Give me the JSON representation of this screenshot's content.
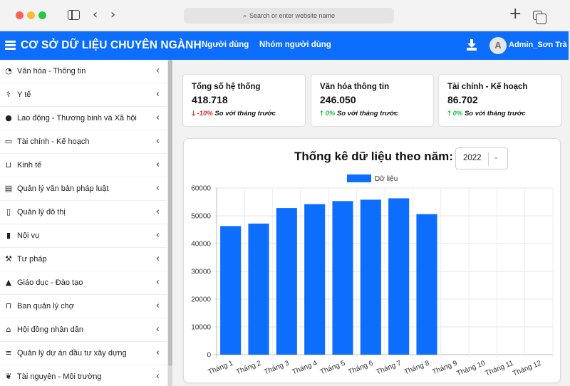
{
  "browser": {
    "url_placeholder": "Search or enter website name"
  },
  "header": {
    "title": "CƠ SỞ DỮ LIỆU CHUYÊN NGÀNH",
    "nav": [
      "Người dùng",
      "Nhóm người dùng"
    ],
    "avatar_letter": "A",
    "username": "Admin_Sơn Trà",
    "brand_color": "#0d6efd"
  },
  "sidebar": {
    "items": [
      {
        "label": "Văn hóa - Thông tin",
        "icon": "clock-icon"
      },
      {
        "label": "Y tế",
        "icon": "stethoscope-icon"
      },
      {
        "label": "Lao động - Thương binh và Xã hội",
        "icon": "globe-icon"
      },
      {
        "label": "Tài chính - Kế hoạch",
        "icon": "money-icon"
      },
      {
        "label": "Kinh tế",
        "icon": "basket-icon"
      },
      {
        "label": "Quản lý văn bản pháp luật",
        "icon": "document-icon"
      },
      {
        "label": "Quản lý đô thị",
        "icon": "building-icon"
      },
      {
        "label": "Nội vụ",
        "icon": "book-icon"
      },
      {
        "label": "Tư pháp",
        "icon": "gavel-icon"
      },
      {
        "label": "Giáo dục - Đào tạo",
        "icon": "graduation-cap-icon"
      },
      {
        "label": "Ban quản lý chợ",
        "icon": "cart-icon"
      },
      {
        "label": "Hội đồng nhân dân",
        "icon": "landmark-icon"
      },
      {
        "label": "Quản lý dự án đầu tư xây dựng",
        "icon": "database-icon"
      },
      {
        "label": "Tài nguyên - Môi trường",
        "icon": "leaf-icon"
      }
    ]
  },
  "stats": [
    {
      "title": "Tổng số hệ thống",
      "value": "418.718",
      "change": "-10%",
      "direction": "down",
      "note": "So với tháng trước"
    },
    {
      "title": "Văn hóa thông tin",
      "value": "246.050",
      "change": "0%",
      "direction": "up",
      "note": "So với tháng trước"
    },
    {
      "title": "Tài chính - Kế hoạch",
      "value": "86.702",
      "change": "0%",
      "direction": "up",
      "note": "So với tháng trước"
    }
  ],
  "chart_panel": {
    "heading": "Thống kê dữ liệu theo năm:",
    "year": "2022"
  },
  "chart_data": {
    "type": "bar",
    "categories": [
      "Tháng 1",
      "Tháng 2",
      "Tháng 3",
      "Tháng 4",
      "Tháng 5",
      "Tháng 6",
      "Tháng 7",
      "Tháng 8",
      "Tháng 9",
      "Tháng 10",
      "Tháng 11",
      "Tháng 12"
    ],
    "series": [
      {
        "name": "Dữ liệu",
        "values": [
          46300,
          47200,
          52800,
          54200,
          55300,
          55800,
          56300,
          50600,
          null,
          null,
          null,
          null
        ],
        "color": "#0d6efd"
      }
    ],
    "yticks": [
      "0",
      "10000",
      "20000",
      "30000",
      "40000",
      "50000",
      "60000"
    ],
    "ylim": [
      0,
      60000
    ],
    "grid": true,
    "legend": "top-center"
  }
}
